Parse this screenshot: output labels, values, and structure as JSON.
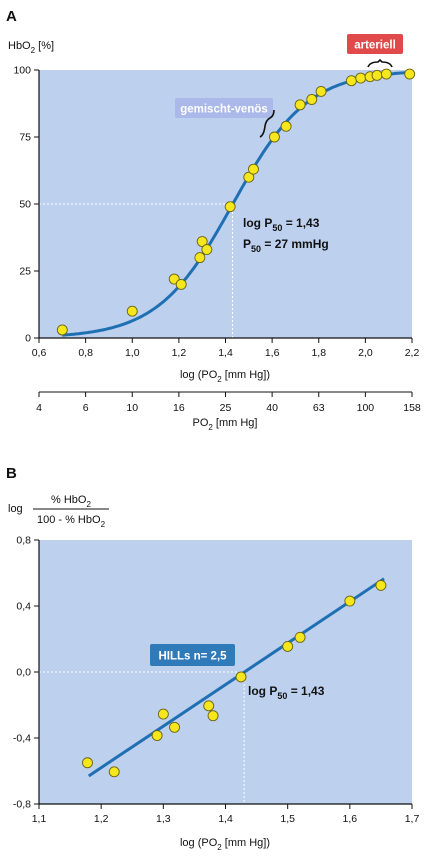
{
  "chart_data": [
    {
      "panel": "A",
      "type": "line",
      "ylabel": "HbO",
      "ylabel_sub": "2",
      "ylabel_unit": " [%]",
      "xlabel": "log (PO",
      "xlabel_sub": "2",
      "xlabel_unit": " [mm Hg])",
      "xlim": [
        0.6,
        2.2
      ],
      "ylim": [
        0,
        100
      ],
      "yticks": [
        0,
        25,
        50,
        75,
        100
      ],
      "xticks": [
        "0,6",
        "0,8",
        "1,0",
        "1,2",
        "1,4",
        "1,6",
        "1,8",
        "2,0",
        "2,2"
      ],
      "xtick_values": [
        0.6,
        0.8,
        1.0,
        1.2,
        1.4,
        1.6,
        1.8,
        2.0,
        2.2
      ],
      "secondary_axis": {
        "label": "PO",
        "label_sub": "2",
        "label_unit": " [mm Hg]",
        "ticks": [
          "4",
          "6",
          "10",
          "16",
          "25",
          "40",
          "63",
          "100",
          "158"
        ],
        "tick_positions": [
          0.6,
          0.8,
          1.0,
          1.2,
          1.4,
          1.6,
          1.8,
          2.0,
          2.2
        ]
      },
      "points": [
        {
          "x": 0.7,
          "y": 3
        },
        {
          "x": 1.0,
          "y": 10
        },
        {
          "x": 1.18,
          "y": 22
        },
        {
          "x": 1.21,
          "y": 20
        },
        {
          "x": 1.29,
          "y": 30
        },
        {
          "x": 1.3,
          "y": 36
        },
        {
          "x": 1.32,
          "y": 33
        },
        {
          "x": 1.42,
          "y": 49
        },
        {
          "x": 1.5,
          "y": 60
        },
        {
          "x": 1.52,
          "y": 63
        },
        {
          "x": 1.61,
          "y": 75
        },
        {
          "x": 1.66,
          "y": 79
        },
        {
          "x": 1.72,
          "y": 87
        },
        {
          "x": 1.77,
          "y": 89
        },
        {
          "x": 1.81,
          "y": 92
        },
        {
          "x": 1.94,
          "y": 96
        },
        {
          "x": 1.98,
          "y": 97
        },
        {
          "x": 2.02,
          "y": 97.5
        },
        {
          "x": 2.05,
          "y": 98
        },
        {
          "x": 2.09,
          "y": 98.5
        },
        {
          "x": 2.19,
          "y": 98.5
        }
      ],
      "p50_line": {
        "x": 1.43,
        "y": 50
      },
      "annotations": {
        "p50_log_prefix": "log P",
        "p50_log_sub": "50",
        "p50_log_value": " = 1,43",
        "p50_prefix": "P",
        "p50_sub": "50",
        "p50_value": " = 27 mmHg",
        "mixed_venous": "gemischt-venös",
        "arterial": "arteriell"
      },
      "colors": {
        "plot_bg": "#bdd0ee",
        "curve": "#1f6fb3",
        "point_fill": "#f5e61e",
        "venous_badge": "#aab8ea",
        "arterial_badge": "#e04a4a"
      }
    },
    {
      "panel": "B",
      "type": "scatter",
      "ylabel_prefix": "log",
      "ylabel_num": "% HbO",
      "ylabel_num_sub": "2",
      "ylabel_den": "100 - % HbO",
      "ylabel_den_sub": "2",
      "xlabel": "log (PO",
      "xlabel_sub": "2",
      "xlabel_unit": " [mm Hg])",
      "xlim": [
        1.1,
        1.7
      ],
      "ylim": [
        -0.8,
        0.8
      ],
      "yticks": [
        "0,8",
        "0,4",
        "0,0",
        "-0,4",
        "-0,8"
      ],
      "ytick_values": [
        0.8,
        0.4,
        0.0,
        -0.4,
        -0.8
      ],
      "xticks": [
        "1,1",
        "1,2",
        "1,3",
        "1,4",
        "1,5",
        "1,6",
        "1,7"
      ],
      "xtick_values": [
        1.1,
        1.2,
        1.3,
        1.4,
        1.5,
        1.6,
        1.7
      ],
      "points": [
        {
          "x": 1.178,
          "y": -0.55
        },
        {
          "x": 1.221,
          "y": -0.605
        },
        {
          "x": 1.29,
          "y": -0.385
        },
        {
          "x": 1.3,
          "y": -0.255
        },
        {
          "x": 1.318,
          "y": -0.335
        },
        {
          "x": 1.373,
          "y": -0.205
        },
        {
          "x": 1.38,
          "y": -0.265
        },
        {
          "x": 1.425,
          "y": -0.03
        },
        {
          "x": 1.5,
          "y": 0.155
        },
        {
          "x": 1.52,
          "y": 0.21
        },
        {
          "x": 1.6,
          "y": 0.43
        },
        {
          "x": 1.65,
          "y": 0.525
        }
      ],
      "fit_line": {
        "x1": 1.18,
        "y1": -0.63,
        "x2": 1.655,
        "y2": 0.565
      },
      "p50_line": {
        "x": 1.43,
        "y": 0.0
      },
      "annotations": {
        "hill": "HILLs n= 2,5",
        "p50_log_prefix": "log P",
        "p50_log_sub": "50",
        "p50_log_value": " = 1,43"
      },
      "colors": {
        "plot_bg": "#bdd0ee",
        "curve": "#1f6fb3",
        "point_fill": "#f5e61e",
        "hill_badge": "#2f7ab8"
      }
    }
  ]
}
